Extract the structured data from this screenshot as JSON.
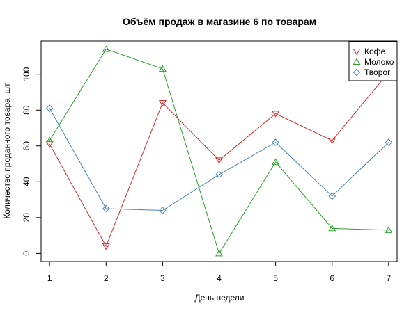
{
  "chart_data": {
    "type": "line",
    "title": "Объём продаж в магазине 6 по товарам",
    "xlabel": "День недели",
    "ylabel": "Количество проданного товара, шт",
    "x": [
      1,
      2,
      3,
      4,
      5,
      6,
      7
    ],
    "x_ticks": [
      "1",
      "2",
      "3",
      "4",
      "5",
      "6",
      "7"
    ],
    "y_ticks": [
      "0",
      "20",
      "40",
      "60",
      "80",
      "100"
    ],
    "xlim": [
      0.85,
      7.15
    ],
    "ylim": [
      -4.5,
      118.5
    ],
    "grid": false,
    "legend_position": "top-right",
    "series": [
      {
        "name": "Кофе",
        "color": "#d62728",
        "marker": "triangle-down",
        "values": [
          61,
          4,
          84,
          52,
          78,
          63,
          101
        ]
      },
      {
        "name": "Молоко",
        "color": "#2ca02c",
        "marker": "triangle-up",
        "values": [
          63,
          114,
          103,
          0,
          51,
          14,
          13
        ]
      },
      {
        "name": "Творог",
        "color": "#4682b4",
        "marker": "diamond",
        "values": [
          81,
          25,
          24,
          44,
          62,
          32,
          62
        ]
      }
    ]
  }
}
